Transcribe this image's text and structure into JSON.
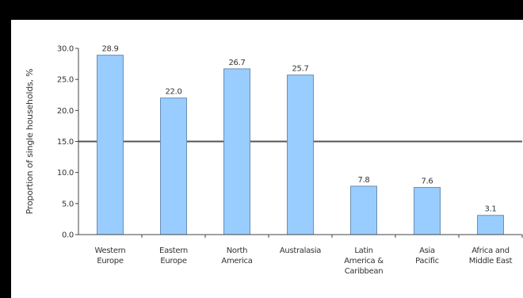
{
  "chart_data": {
    "type": "bar",
    "ylabel": "Proportion of single households, %",
    "xlabel": "",
    "title": "",
    "ylim": [
      0,
      30
    ],
    "yticks": [
      "0.0",
      "5.0",
      "10.0",
      "15.0",
      "20.0",
      "25.0",
      "30.0"
    ],
    "categories": [
      [
        "Western",
        "Europe"
      ],
      [
        "Eastern",
        "Europe"
      ],
      [
        "North",
        "America"
      ],
      [
        "Australasia"
      ],
      [
        "Latin",
        "America &",
        "Caribbean"
      ],
      [
        "Asia",
        "Pacific"
      ],
      [
        "Africa and",
        "Middle East"
      ]
    ],
    "values": [
      28.9,
      22.0,
      26.7,
      25.7,
      7.8,
      7.6,
      3.1
    ],
    "value_labels": [
      "28.9",
      "22.0",
      "26.7",
      "25.7",
      "7.8",
      "7.6",
      "3.1"
    ],
    "bar_color": "#99CCFF",
    "bar_edge_color": "#6A8FB5",
    "gridlines": [
      15
    ],
    "grid": false
  }
}
